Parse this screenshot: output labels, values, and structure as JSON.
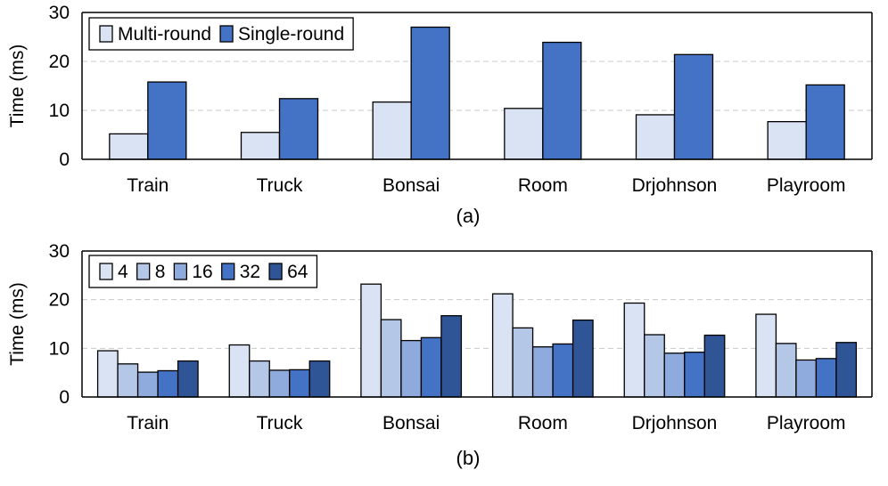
{
  "chart_data": [
    {
      "type": "bar",
      "caption": "(a)",
      "ylabel": "Time (ms)",
      "ylim": [
        0,
        30
      ],
      "yticks": [
        0,
        10,
        20,
        30
      ],
      "grid": true,
      "legend_position": "top-left",
      "categories": [
        "Train",
        "Truck",
        "Bonsai",
        "Room",
        "Drjohnson",
        "Playroom"
      ],
      "series": [
        {
          "name": "Multi-round",
          "color": "#dae3f3",
          "values": [
            5.2,
            5.5,
            11.7,
            10.4,
            9.1,
            7.7
          ]
        },
        {
          "name": "Single-round",
          "color": "#4472c4",
          "values": [
            15.8,
            12.4,
            27.0,
            23.9,
            21.4,
            15.2
          ]
        }
      ]
    },
    {
      "type": "bar",
      "caption": "(b)",
      "ylabel": "Time (ms)",
      "ylim": [
        0,
        30
      ],
      "yticks": [
        0,
        10,
        20,
        30
      ],
      "grid": true,
      "legend_position": "top-left",
      "categories": [
        "Train",
        "Truck",
        "Bonsai",
        "Room",
        "Drjohnson",
        "Playroom"
      ],
      "series": [
        {
          "name": "4",
          "color": "#dae3f3",
          "values": [
            9.5,
            10.7,
            23.2,
            21.2,
            19.3,
            17.0
          ]
        },
        {
          "name": "8",
          "color": "#b4c7e7",
          "values": [
            6.8,
            7.4,
            15.9,
            14.2,
            12.8,
            11.0
          ]
        },
        {
          "name": "16",
          "color": "#8faadc",
          "values": [
            5.1,
            5.5,
            11.6,
            10.3,
            9.0,
            7.6
          ]
        },
        {
          "name": "32",
          "color": "#4472c4",
          "values": [
            5.4,
            5.6,
            12.2,
            10.9,
            9.2,
            7.9
          ]
        },
        {
          "name": "64",
          "color": "#2f5597",
          "values": [
            7.4,
            7.4,
            16.7,
            15.8,
            12.7,
            11.2
          ]
        }
      ]
    }
  ]
}
